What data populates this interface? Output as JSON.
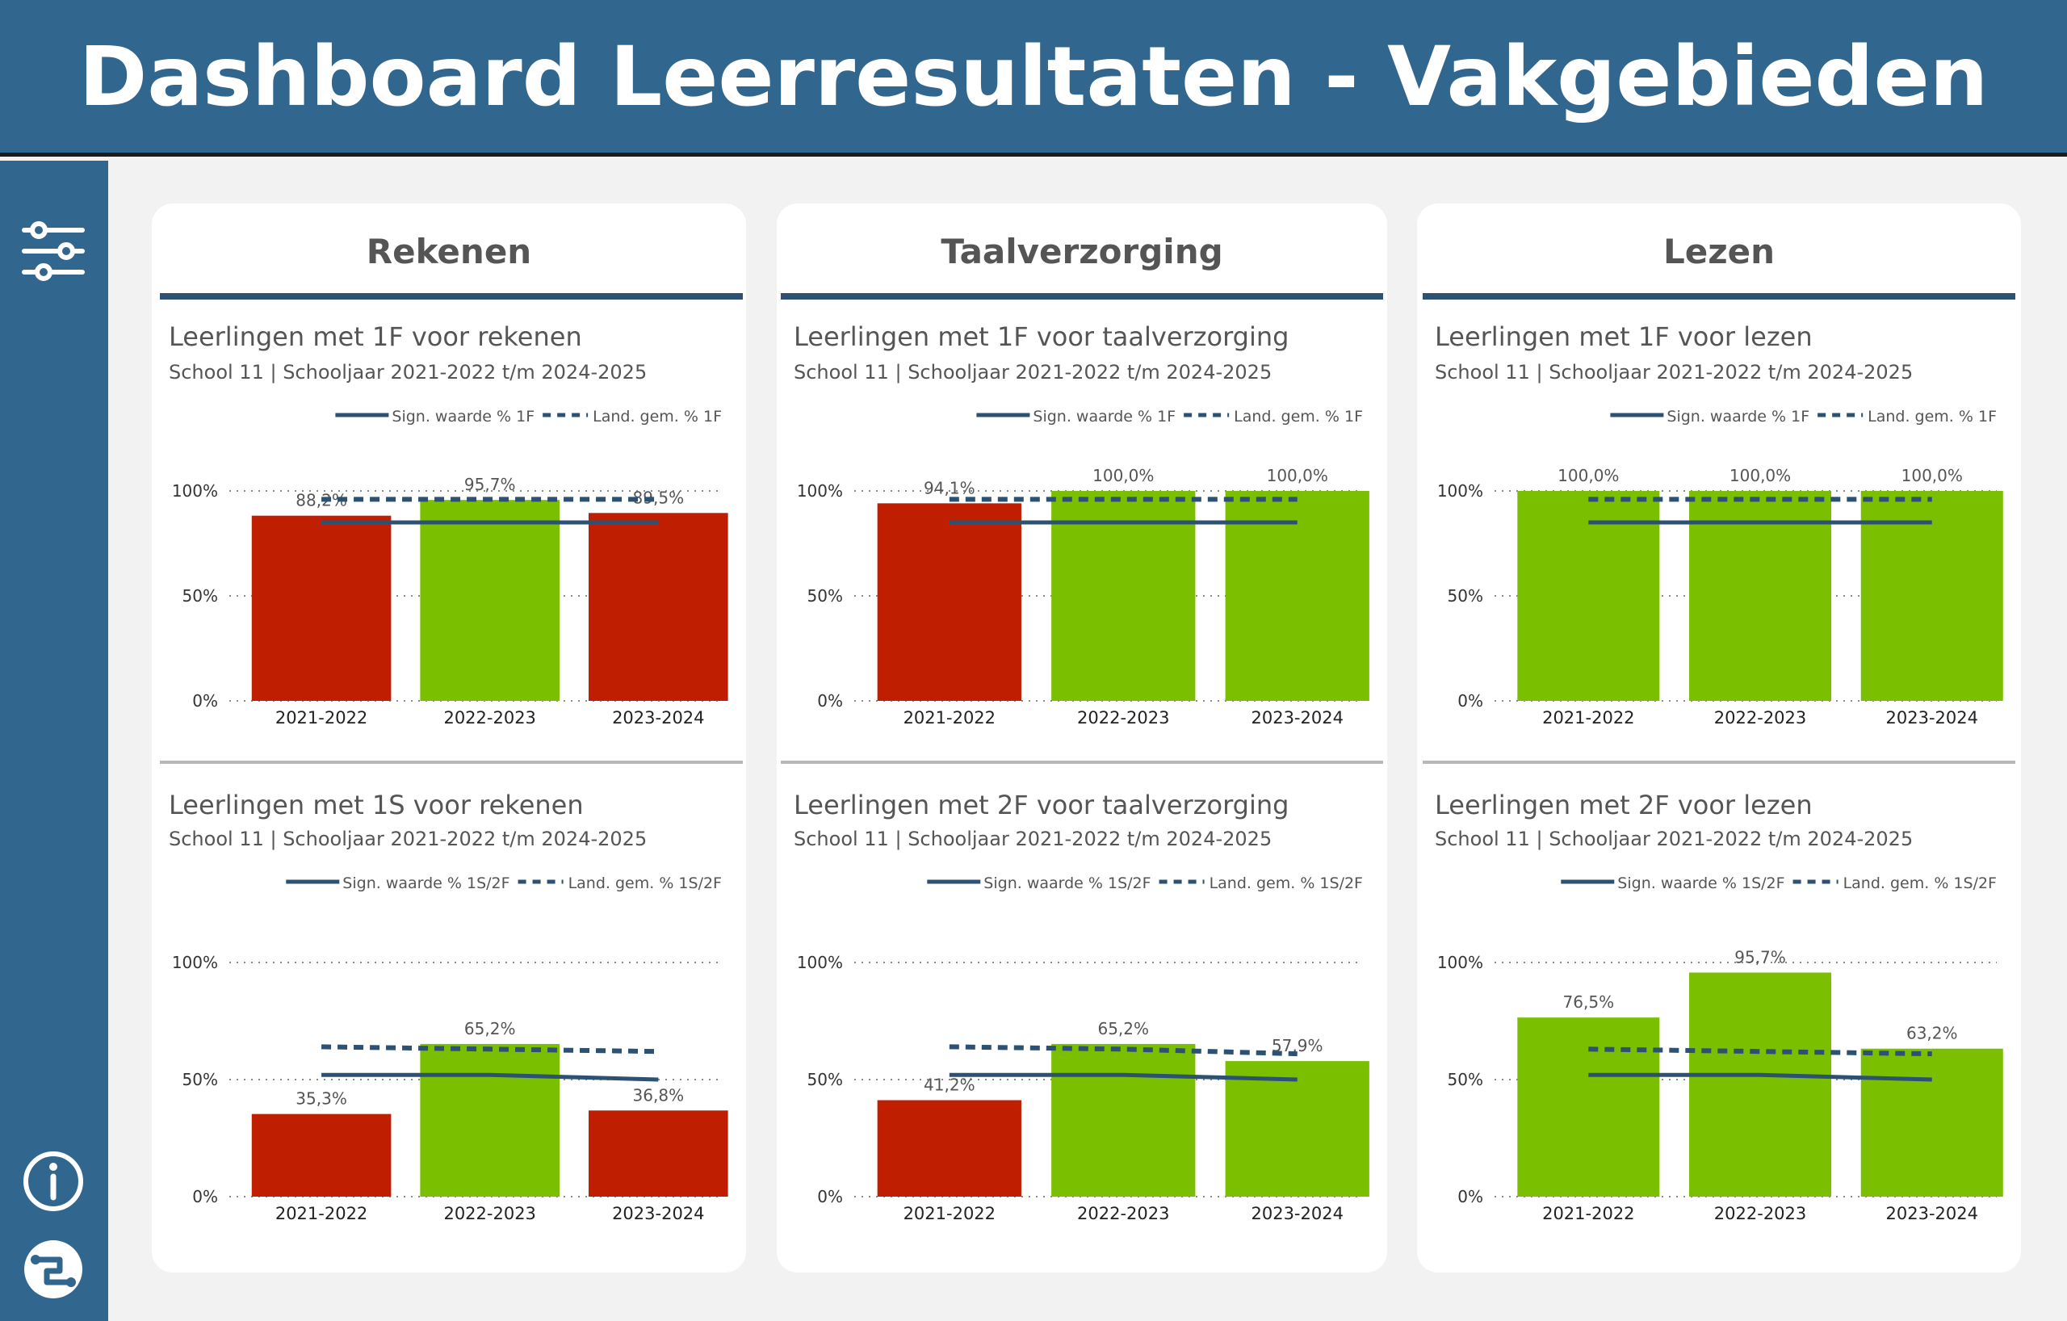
{
  "header": {
    "title": "Dashboard Leerresultaten - Vakgebieden"
  },
  "sidebar": {
    "icons": [
      "filter-sliders-icon",
      "info-icon",
      "logo-icon"
    ],
    "icon_color": "#ffffff"
  },
  "colors": {
    "header_bg": "#31678e",
    "bar_above": "#7ac000",
    "bar_below": "#c01e00",
    "signal_line": "#2c5173",
    "average_line": "#2c5173"
  },
  "cards": [
    {
      "title": "Rekenen",
      "charts": [
        {
          "title": "Leerlingen met 1F voor rekenen",
          "subtitle": "School 11 | Schooljaar 2021-2022 t/m 2024-2025",
          "chart_data": {
            "type": "bar",
            "categories": [
              "2021-2022",
              "2022-2023",
              "2023-2024"
            ],
            "values": [
              88.2,
              95.7,
              89.5
            ],
            "value_labels": [
              "88,2%",
              "95,7%",
              "89,5%"
            ],
            "bar_colors": [
              "#c01e00",
              "#7ac000",
              "#c01e00"
            ],
            "series": [
              {
                "name": "Sign. waarde % 1F",
                "style": "solid",
                "values": [
                  85,
                  85,
                  85
                ]
              },
              {
                "name": "Land. gem. % 1F",
                "style": "dashed",
                "values": [
                  96,
                  96,
                  96
                ]
              }
            ],
            "y_ticks": [
              "0%",
              "50%",
              "100%"
            ],
            "ylim": [
              0,
              100
            ],
            "grid": true,
            "legend": "top-right"
          }
        },
        {
          "title": "Leerlingen met 1S voor rekenen",
          "subtitle": "School 11 | Schooljaar 2021-2022 t/m 2024-2025",
          "chart_data": {
            "type": "bar",
            "categories": [
              "2021-2022",
              "2022-2023",
              "2023-2024"
            ],
            "values": [
              35.3,
              65.2,
              36.8
            ],
            "value_labels": [
              "35,3%",
              "65,2%",
              "36,8%"
            ],
            "bar_colors": [
              "#c01e00",
              "#7ac000",
              "#c01e00"
            ],
            "series": [
              {
                "name": "Sign. waarde % 1S/2F",
                "style": "solid",
                "values": [
                  52,
                  52,
                  50
                ]
              },
              {
                "name": "Land. gem. % 1S/2F",
                "style": "dashed",
                "values": [
                  64,
                  63,
                  62
                ]
              }
            ],
            "y_ticks": [
              "0%",
              "50%",
              "100%"
            ],
            "ylim": [
              0,
              100
            ],
            "grid": true,
            "legend": "top-right"
          }
        }
      ]
    },
    {
      "title": "Taalverzorging",
      "charts": [
        {
          "title": "Leerlingen met 1F voor taalverzorging",
          "subtitle": "School 11 | Schooljaar 2021-2022 t/m 2024-2025",
          "chart_data": {
            "type": "bar",
            "categories": [
              "2021-2022",
              "2022-2023",
              "2023-2024"
            ],
            "values": [
              94.1,
              100,
              100
            ],
            "value_labels": [
              "94,1%",
              "100,0%",
              "100,0%"
            ],
            "bar_colors": [
              "#c01e00",
              "#7ac000",
              "#7ac000"
            ],
            "series": [
              {
                "name": "Sign. waarde % 1F",
                "style": "solid",
                "values": [
                  85,
                  85,
                  85
                ]
              },
              {
                "name": "Land. gem. % 1F",
                "style": "dashed",
                "values": [
                  96,
                  96,
                  96
                ]
              }
            ],
            "y_ticks": [
              "0%",
              "50%",
              "100%"
            ],
            "ylim": [
              0,
              100
            ],
            "grid": true,
            "legend": "top-right"
          }
        },
        {
          "title": "Leerlingen met 2F voor taalverzorging",
          "subtitle": "School 11 | Schooljaar 2021-2022 t/m 2024-2025",
          "chart_data": {
            "type": "bar",
            "categories": [
              "2021-2022",
              "2022-2023",
              "2023-2024"
            ],
            "values": [
              41.2,
              65.2,
              57.9
            ],
            "value_labels": [
              "41,2%",
              "65,2%",
              "57,9%"
            ],
            "bar_colors": [
              "#c01e00",
              "#7ac000",
              "#7ac000"
            ],
            "series": [
              {
                "name": "Sign. waarde % 1S/2F",
                "style": "solid",
                "values": [
                  52,
                  52,
                  50
                ]
              },
              {
                "name": "Land. gem. % 1S/2F",
                "style": "dashed",
                "values": [
                  64,
                  63,
                  61
                ]
              }
            ],
            "y_ticks": [
              "0%",
              "50%",
              "100%"
            ],
            "ylim": [
              0,
              100
            ],
            "grid": true,
            "legend": "top-right"
          }
        }
      ]
    },
    {
      "title": "Lezen",
      "charts": [
        {
          "title": "Leerlingen met 1F voor lezen",
          "subtitle": "School 11 | Schooljaar 2021-2022 t/m 2024-2025",
          "chart_data": {
            "type": "bar",
            "categories": [
              "2021-2022",
              "2022-2023",
              "2023-2024"
            ],
            "values": [
              100,
              100,
              100
            ],
            "value_labels": [
              "100,0%",
              "100,0%",
              "100,0%"
            ],
            "bar_colors": [
              "#7ac000",
              "#7ac000",
              "#7ac000"
            ],
            "series": [
              {
                "name": "Sign. waarde % 1F",
                "style": "solid",
                "values": [
                  85,
                  85,
                  85
                ]
              },
              {
                "name": "Land. gem. % 1F",
                "style": "dashed",
                "values": [
                  96,
                  96,
                  96
                ]
              }
            ],
            "y_ticks": [
              "0%",
              "50%",
              "100%"
            ],
            "ylim": [
              0,
              100
            ],
            "grid": true,
            "legend": "top-right"
          }
        },
        {
          "title": "Leerlingen met 2F voor lezen",
          "subtitle": "School 11 | Schooljaar 2021-2022 t/m 2024-2025",
          "chart_data": {
            "type": "bar",
            "categories": [
              "2021-2022",
              "2022-2023",
              "2023-2024"
            ],
            "values": [
              76.5,
              95.7,
              63.2
            ],
            "value_labels": [
              "76,5%",
              "95,7%",
              "63,2%"
            ],
            "bar_colors": [
              "#7ac000",
              "#7ac000",
              "#7ac000"
            ],
            "series": [
              {
                "name": "Sign. waarde % 1S/2F",
                "style": "solid",
                "values": [
                  52,
                  52,
                  50
                ]
              },
              {
                "name": "Land. gem. % 1S/2F",
                "style": "dashed",
                "values": [
                  63,
                  62,
                  61
                ]
              }
            ],
            "y_ticks": [
              "0%",
              "50%",
              "100%"
            ],
            "ylim": [
              0,
              100
            ],
            "grid": true,
            "legend": "top-right"
          }
        }
      ]
    }
  ]
}
